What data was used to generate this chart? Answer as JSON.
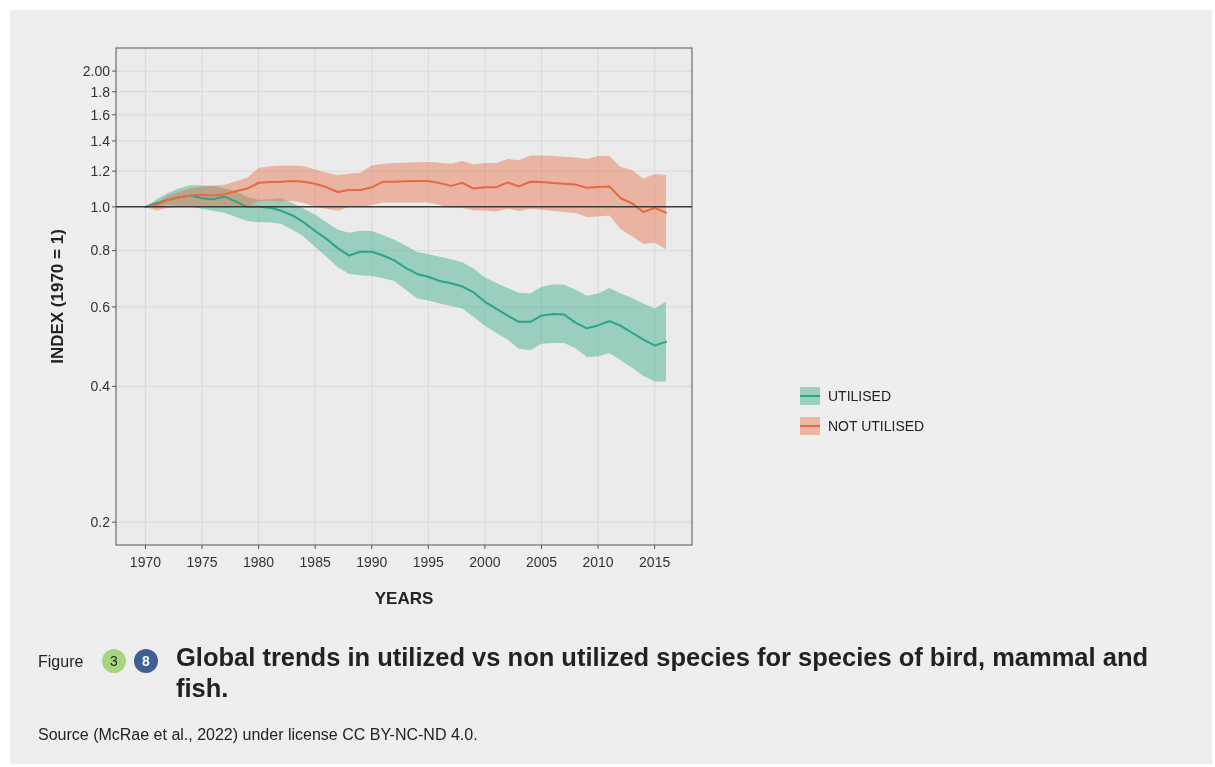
{
  "chart_data": {
    "type": "line",
    "title": "Global trends in utilized vs non utilized species for species of bird, mammal and fish.",
    "xlabel": "YEARS",
    "ylabel": "INDEX (1970 = 1)",
    "log": "y",
    "grid": true,
    "legend": "right",
    "marker": "none",
    "line_style": "solid",
    "annotations": [
      "Figure",
      "3",
      "8",
      "Source (McRae et al., 2022) under license CC BY-NC-ND 4.0."
    ],
    "xlim": [
      1967.4,
      2018.3
    ],
    "xticks": [
      1970,
      1975,
      1980,
      1985,
      1990,
      1995,
      2000,
      2005,
      2010,
      2015
    ],
    "ylim": [
      0.178,
      2.25
    ],
    "yticks": [
      0.2,
      0.4,
      0.6,
      0.8,
      {
        "value": 1,
        "label": "1.0"
      },
      1.2,
      1.4,
      1.6,
      1.8,
      {
        "value": 2,
        "label": "2.00"
      }
    ],
    "ref_lines": [
      {
        "axis": "y",
        "value": 1,
        "color": "#3a3a3a"
      }
    ],
    "x": [
      1970,
      1971,
      1972,
      1973,
      1974,
      1975,
      1976,
      1977,
      1978,
      1979,
      1980,
      1981,
      1982,
      1983,
      1984,
      1985,
      1986,
      1987,
      1988,
      1989,
      1990,
      1991,
      1992,
      1993,
      1994,
      1995,
      1996,
      1997,
      1998,
      1999,
      2000,
      2001,
      2002,
      2003,
      2004,
      2005,
      2006,
      2007,
      2008,
      2009,
      2010,
      2011,
      2012,
      2013,
      2014,
      2015,
      2016
    ],
    "series": [
      {
        "name": "UTILISED",
        "color": "#2aa682",
        "values": [
          1.0,
          1.02,
          1.036,
          1.05,
          1.06,
          1.045,
          1.04,
          1.054,
          1.027,
          1.0,
          1.0,
          0.996,
          0.98,
          0.957,
          0.924,
          0.884,
          0.849,
          0.81,
          0.78,
          0.795,
          0.795,
          0.78,
          0.761,
          0.732,
          0.71,
          0.7,
          0.685,
          0.677,
          0.666,
          0.646,
          0.616,
          0.595,
          0.574,
          0.556,
          0.556,
          0.574,
          0.579,
          0.577,
          0.554,
          0.538,
          0.546,
          0.558,
          0.545,
          0.526,
          0.508,
          0.493,
          0.502
        ],
        "upper": [
          1.0,
          1.04,
          1.073,
          1.1,
          1.117,
          1.115,
          1.112,
          1.1,
          1.083,
          1.05,
          1.036,
          1.04,
          1.045,
          1.02,
          0.991,
          0.96,
          0.924,
          0.89,
          0.876,
          0.885,
          0.884,
          0.865,
          0.846,
          0.82,
          0.795,
          0.785,
          0.775,
          0.765,
          0.754,
          0.73,
          0.697,
          0.678,
          0.661,
          0.645,
          0.643,
          0.665,
          0.673,
          0.672,
          0.655,
          0.635,
          0.643,
          0.661,
          0.643,
          0.628,
          0.611,
          0.595,
          0.616
        ],
        "lower": [
          1.0,
          1.0,
          1.009,
          1.005,
          1.0,
          0.99,
          0.979,
          0.97,
          0.949,
          0.93,
          0.924,
          0.924,
          0.916,
          0.89,
          0.858,
          0.815,
          0.775,
          0.735,
          0.71,
          0.705,
          0.703,
          0.695,
          0.685,
          0.655,
          0.627,
          0.62,
          0.611,
          0.603,
          0.595,
          0.57,
          0.545,
          0.525,
          0.508,
          0.485,
          0.481,
          0.497,
          0.499,
          0.499,
          0.486,
          0.465,
          0.466,
          0.474,
          0.457,
          0.44,
          0.422,
          0.41,
          0.41
        ]
      },
      {
        "name": "NOT UTILISED",
        "color": "#e8683f",
        "values": [
          1.0,
          1.012,
          1.036,
          1.05,
          1.06,
          1.064,
          1.06,
          1.067,
          1.083,
          1.098,
          1.131,
          1.135,
          1.137,
          1.141,
          1.137,
          1.125,
          1.105,
          1.079,
          1.09,
          1.09,
          1.105,
          1.137,
          1.137,
          1.139,
          1.141,
          1.141,
          1.129,
          1.113,
          1.131,
          1.098,
          1.105,
          1.105,
          1.133,
          1.11,
          1.137,
          1.135,
          1.129,
          1.125,
          1.121,
          1.102,
          1.107,
          1.11,
          1.045,
          1.018,
          0.974,
          0.995,
          0.971
        ],
        "upper": [
          1.0,
          1.02,
          1.06,
          1.08,
          1.1,
          1.11,
          1.115,
          1.12,
          1.14,
          1.16,
          1.22,
          1.23,
          1.235,
          1.235,
          1.23,
          1.21,
          1.19,
          1.175,
          1.185,
          1.19,
          1.235,
          1.246,
          1.251,
          1.253,
          1.255,
          1.257,
          1.253,
          1.246,
          1.264,
          1.241,
          1.251,
          1.251,
          1.277,
          1.268,
          1.3,
          1.3,
          1.296,
          1.291,
          1.286,
          1.277,
          1.296,
          1.296,
          1.225,
          1.207,
          1.155,
          1.182,
          1.176
        ],
        "lower": [
          1.0,
          0.982,
          0.995,
          1.0,
          1.0,
          1.0,
          1.0,
          0.995,
          1.0,
          1.0,
          1.03,
          1.03,
          1.03,
          1.03,
          1.02,
          1.0,
          0.99,
          0.98,
          1.0,
          1.0,
          1.009,
          1.023,
          1.023,
          1.023,
          1.023,
          1.023,
          1.009,
          0.995,
          0.996,
          0.982,
          0.982,
          0.977,
          0.991,
          0.979,
          0.991,
          0.986,
          0.979,
          0.974,
          0.969,
          0.949,
          0.952,
          0.957,
          0.892,
          0.861,
          0.827,
          0.833,
          0.805
        ]
      }
    ]
  }
}
